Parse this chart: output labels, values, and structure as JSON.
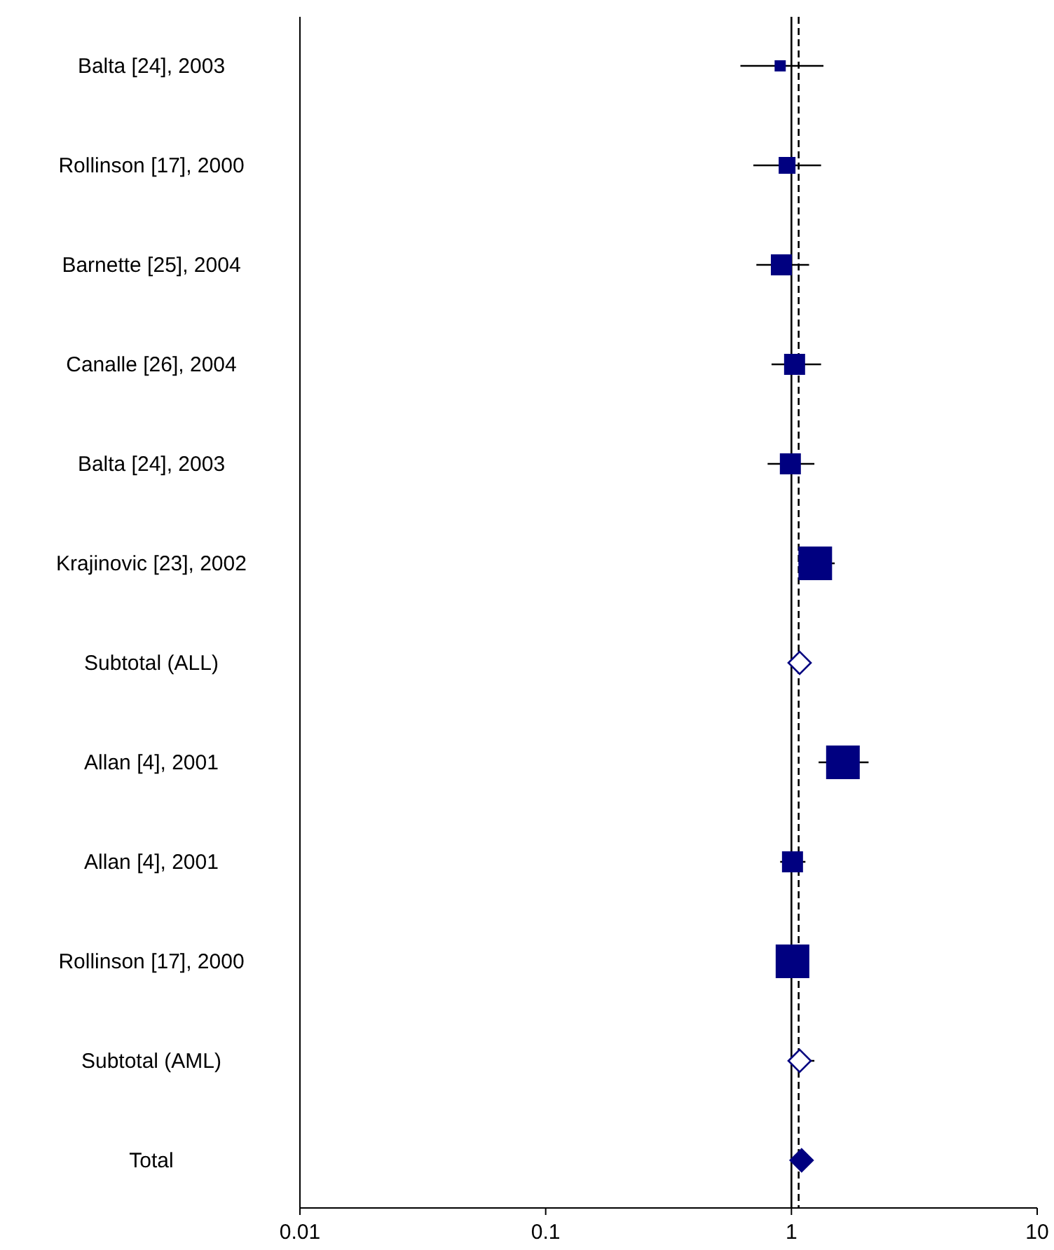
{
  "chart_data": {
    "type": "scatter",
    "orientation": "horizontal",
    "log": "x",
    "categories": [
      "Balta [24], 2003",
      "Rollinson [17], 2000",
      "Barnette [25], 2004",
      "Canalle [26], 2004",
      "Balta [24], 2003",
      "Krajinovic [23], 2002",
      "Subtotal (ALL)",
      "Allan [4], 2001",
      "Allan [4], 2001",
      "Rollinson [17], 2000",
      "Subtotal (AML)",
      "Total"
    ],
    "xlim": [
      0.01,
      10
    ],
    "xticks": [
      0.01,
      0.1,
      1,
      10
    ],
    "series": [
      {
        "type": "bubble",
        "marker": "square",
        "color": "#000080",
        "values": [
          0.9,
          0.96,
          0.91,
          1.03,
          0.99,
          1.25,
          null,
          1.62,
          1.01,
          1.01,
          null,
          null
        ],
        "sizes": [
          0.11,
          0.25,
          0.39,
          0.39,
          0.39,
          1,
          null,
          1,
          0.39,
          1,
          null,
          null
        ],
        "errors": [
          [
            0.62,
            1.35
          ],
          [
            0.7,
            1.32
          ],
          [
            0.72,
            1.18
          ],
          [
            0.83,
            1.32
          ],
          [
            0.8,
            1.24
          ],
          [
            1.07,
            1.5
          ],
          null,
          [
            1.29,
            2.06
          ],
          [
            0.9,
            1.14
          ],
          null,
          null,
          null
        ]
      },
      {
        "type": "scatter",
        "marker": "diamond",
        "color": "#000080",
        "values": [
          null,
          null,
          null,
          null,
          null,
          null,
          1.08,
          null,
          null,
          null,
          1.08,
          null
        ],
        "errors": [
          null,
          null,
          null,
          null,
          null,
          null,
          null,
          null,
          null,
          null,
          [
            0.98,
            1.24
          ],
          null
        ]
      },
      {
        "type": "scatter",
        "marker": "diamond",
        "color": "#000080",
        "values": [
          null,
          null,
          null,
          null,
          null,
          null,
          null,
          null,
          null,
          null,
          null,
          1.1
        ]
      }
    ],
    "ref_lines": [
      {
        "axis": "x",
        "value": 1,
        "color": "#000000",
        "line_style": "solid"
      },
      {
        "axis": "x",
        "value": 1.07,
        "color": "#000000",
        "line_style": "dashed"
      }
    ],
    "grid": false
  }
}
